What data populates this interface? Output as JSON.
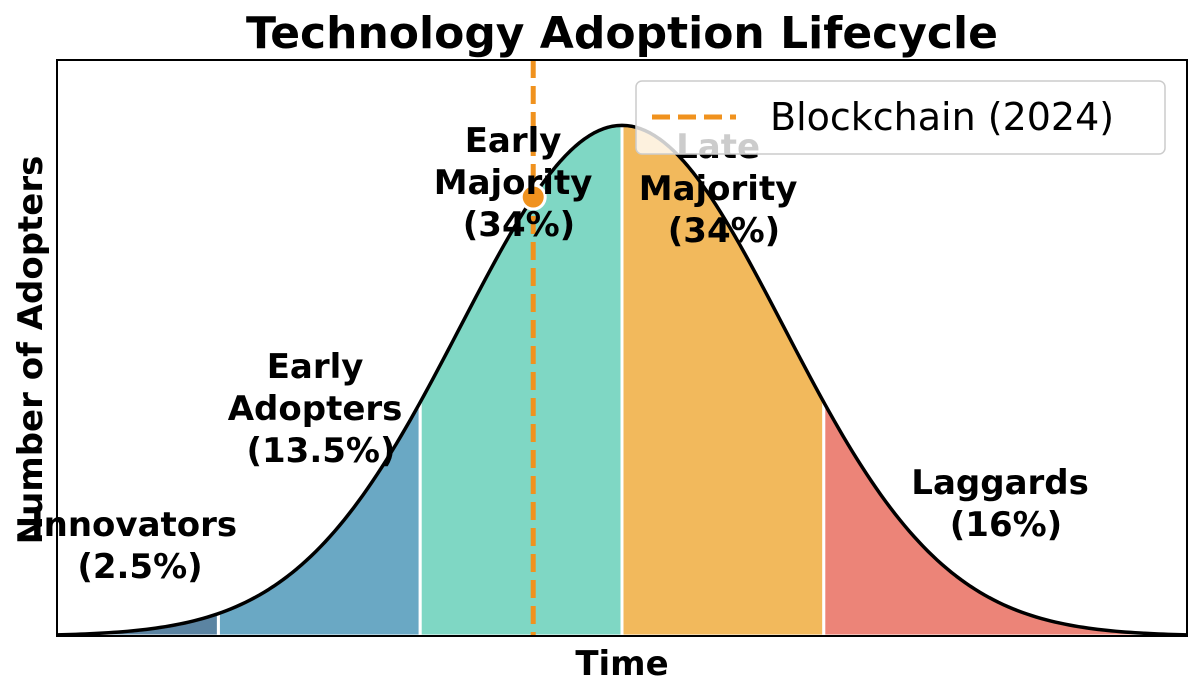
{
  "chart_data": {
    "type": "area",
    "title": "Technology Adoption Lifecycle",
    "xlabel": "Time",
    "ylabel": "Number of Adopters",
    "x_range": [
      -3.5,
      3.5
    ],
    "ylim": [
      0,
      0.45
    ],
    "grid": false,
    "legend_position": "top-right",
    "curve": "normal distribution, mean 0, standard deviation 1",
    "segments": [
      {
        "name": "Innovators",
        "share": "(2.5%)",
        "x_start": -3.5,
        "x_end": -2.5,
        "color": "#5b84a2"
      },
      {
        "name": "Early Adopters",
        "share": "(13.5%)",
        "x_start": -2.5,
        "x_end": -1.25,
        "color": "#6aa8c4"
      },
      {
        "name": "Early Majority",
        "share": "(34%)",
        "x_start": -1.25,
        "x_end": 0,
        "color": "#7fd7c4"
      },
      {
        "name": "Late Majority",
        "share": "(34%)",
        "x_start": 0,
        "x_end": 1.25,
        "color": "#f2b95c"
      },
      {
        "name": "Laggards",
        "share": "(16%)",
        "x_start": 1.25,
        "x_end": 3.5,
        "color": "#ec8478"
      }
    ],
    "marker": {
      "name": "Blockchain (2024)",
      "x": -0.55,
      "color": "#f0921e"
    },
    "curve_color": "#000000"
  },
  "labels": {
    "title": "Technology Adoption Lifecycle",
    "xlabel": "Time",
    "ylabel": "Number of Adopters",
    "legend": "Blockchain (2024)",
    "innovators": [
      "Innovators",
      "(2.5%)"
    ],
    "early_adopters": [
      "Early",
      "Adopters",
      "(13.5%)"
    ],
    "early_majority": [
      "Early",
      "Majority",
      "(34%)"
    ],
    "late_majority": [
      "Late",
      "Majority",
      "(34%)"
    ],
    "laggards": [
      "Laggards",
      "(16%)"
    ]
  }
}
